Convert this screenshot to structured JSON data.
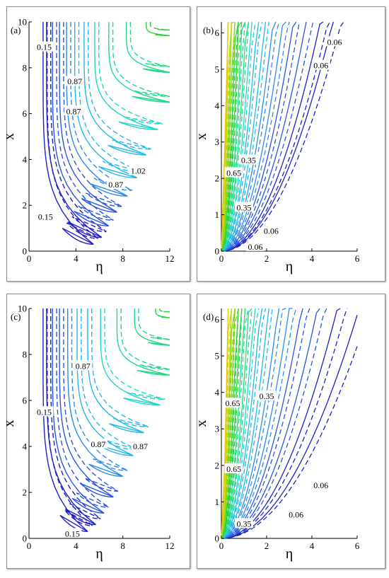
{
  "palette": {
    "frame": "#8c8c8c",
    "line_colors": [
      "#1f1fc8",
      "#2a55e0",
      "#2f8ae8",
      "#21b9e6",
      "#22d6c8",
      "#22d98a",
      "#2bd23e",
      "#7dd61a",
      "#c6d80e",
      "#e8c60c"
    ]
  },
  "chart_data": [
    {
      "id": "a",
      "type": "contour",
      "panel_label": "(a)",
      "xlabel": "η",
      "ylabel": "x",
      "xlim": [
        0,
        12
      ],
      "ylim": [
        0,
        10
      ],
      "xticks": [
        0,
        4,
        8,
        12
      ],
      "yticks": [
        0,
        2,
        4,
        6,
        8,
        10
      ],
      "x_tick_labels": [
        "0",
        "4",
        "8",
        "12"
      ],
      "y_tick_labels": [
        "0",
        "2",
        "4",
        "6",
        "8",
        "10"
      ],
      "contour_labels": [
        {
          "text": "0.15",
          "eta": 1.3,
          "x": 8.9
        },
        {
          "text": "0.87",
          "eta": 3.9,
          "x": 7.4
        },
        {
          "text": "0.87",
          "eta": 3.8,
          "x": 6.1
        },
        {
          "text": "1.02",
          "eta": 9.3,
          "x": 3.5
        },
        {
          "text": "0.87",
          "eta": 7.4,
          "x": 2.9
        },
        {
          "text": "0.15",
          "eta": 1.4,
          "x": 1.5
        }
      ]
    },
    {
      "id": "b",
      "type": "contour",
      "panel_label": "(b)",
      "xlabel": "η",
      "ylabel": "x",
      "xlim": [
        0,
        6
      ],
      "ylim": [
        0,
        6.3
      ],
      "xticks": [
        0,
        2,
        4,
        6
      ],
      "yticks": [
        0,
        1,
        2,
        3,
        4,
        5,
        6
      ],
      "x_tick_labels": [
        "0",
        "2",
        "4",
        "6"
      ],
      "y_tick_labels": [
        "0",
        "1",
        "2",
        "3",
        "4",
        "5",
        "6"
      ],
      "contour_labels": [
        {
          "text": "0.06",
          "eta": 5.0,
          "x": 5.75
        },
        {
          "text": "0.06",
          "eta": 4.4,
          "x": 5.1
        },
        {
          "text": "0.35",
          "eta": 1.2,
          "x": 2.5
        },
        {
          "text": "0.65",
          "eta": 0.55,
          "x": 2.15
        },
        {
          "text": "0.35",
          "eta": 1.0,
          "x": 1.2
        },
        {
          "text": "0.06",
          "eta": 2.2,
          "x": 0.55
        },
        {
          "text": "0.06",
          "eta": 1.5,
          "x": 0.12
        }
      ]
    },
    {
      "id": "c",
      "type": "contour",
      "panel_label": "(c)",
      "xlabel": "η",
      "ylabel": "x",
      "xlim": [
        0,
        12
      ],
      "ylim": [
        0,
        10
      ],
      "xticks": [
        0,
        4,
        8,
        12
      ],
      "yticks": [
        0,
        2,
        4,
        6,
        8,
        10
      ],
      "x_tick_labels": [
        "0",
        "4",
        "8",
        "12"
      ],
      "y_tick_labels": [
        "0",
        "2",
        "4",
        "6",
        "8",
        "10"
      ],
      "contour_labels": [
        {
          "text": "0.87",
          "eta": 4.6,
          "x": 7.5
        },
        {
          "text": "0.15",
          "eta": 1.3,
          "x": 5.5
        },
        {
          "text": "0.87",
          "eta": 5.9,
          "x": 4.1
        },
        {
          "text": "0.87",
          "eta": 9.5,
          "x": 4.0
        },
        {
          "text": "0.15",
          "eta": 3.7,
          "x": 0.2
        }
      ]
    },
    {
      "id": "d",
      "type": "contour",
      "panel_label": "(d)",
      "xlabel": "η",
      "ylabel": "x",
      "xlim": [
        0,
        6
      ],
      "ylim": [
        0,
        6.3
      ],
      "xticks": [
        0,
        2,
        4,
        6
      ],
      "yticks": [
        0,
        1,
        2,
        3,
        4,
        5,
        6
      ],
      "x_tick_labels": [
        "0",
        "2",
        "4",
        "6"
      ],
      "y_tick_labels": [
        "0",
        "1",
        "2",
        "3",
        "4",
        "5",
        "6"
      ],
      "contour_labels": [
        {
          "text": "0.65",
          "eta": 0.5,
          "x": 3.7
        },
        {
          "text": "0.35",
          "eta": 2.0,
          "x": 3.9
        },
        {
          "text": "0.65",
          "eta": 0.55,
          "x": 1.9
        },
        {
          "text": "0.06",
          "eta": 4.4,
          "x": 1.45
        },
        {
          "text": "0.06",
          "eta": 3.3,
          "x": 0.65
        },
        {
          "text": "0.35",
          "eta": 1.0,
          "x": 0.4
        }
      ]
    }
  ]
}
